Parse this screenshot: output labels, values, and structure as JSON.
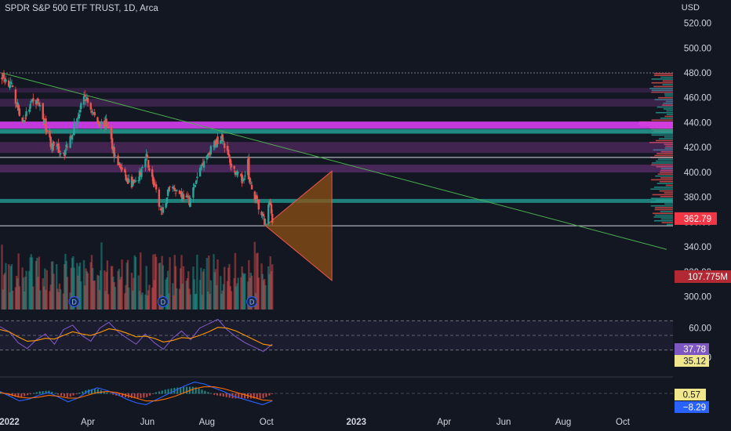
{
  "header": {
    "title": "SPDR S&P 500 ETF TRUST, 1D, Arca",
    "currency": "USD"
  },
  "colors": {
    "background": "#131722",
    "up": "#26a69a",
    "down": "#ef5350",
    "axis_text": "#d1d4dc",
    "price_label_bg": "#f23645",
    "rsi_line": "#7e57c2",
    "rsi_ma": "#ff9800",
    "macd_line": "#2962ff",
    "signal_line": "#ff6d00",
    "triangle_fill": "#8d5213",
    "triangle_edge": "#ef5350",
    "trend_line": "#4caf50"
  },
  "chart_data": [
    {
      "type": "candlestick",
      "title": "SPDR S&P 500 ETF TRUST, 1D, Arca",
      "ylabel": "USD",
      "ylim": [
        280,
        530
      ],
      "y_ticks": [
        "520.00",
        "500.00",
        "480.00",
        "460.00",
        "440.00",
        "420.00",
        "400.00",
        "380.00",
        "360.00",
        "340.00",
        "320.00",
        "300.00"
      ],
      "x_ticks": [
        "2022",
        "Apr",
        "Jun",
        "Aug",
        "Oct",
        "2023",
        "Apr",
        "Jun",
        "Aug",
        "Oct"
      ],
      "x_range": [
        "2022-01-01",
        "2023-11-15"
      ],
      "last_price_label": "362.79",
      "volume_label": "107.775M",
      "dividend_markers": [
        {
          "date": "2022-03-18",
          "label": "D"
        },
        {
          "date": "2022-06-17",
          "label": "D"
        },
        {
          "date": "2022-09-16",
          "label": "D"
        }
      ],
      "approx_close_series": [
        {
          "date": "2022-01-03",
          "close": 477
        },
        {
          "date": "2022-01-12",
          "close": 471
        },
        {
          "date": "2022-01-24",
          "close": 440
        },
        {
          "date": "2022-02-02",
          "close": 455
        },
        {
          "date": "2022-02-09",
          "close": 457
        },
        {
          "date": "2022-02-23",
          "close": 421
        },
        {
          "date": "2022-03-08",
          "close": 416
        },
        {
          "date": "2022-03-29",
          "close": 461
        },
        {
          "date": "2022-04-11",
          "close": 440
        },
        {
          "date": "2022-04-21",
          "close": 438
        },
        {
          "date": "2022-04-29",
          "close": 412
        },
        {
          "date": "2022-05-12",
          "close": 392
        },
        {
          "date": "2022-05-20",
          "close": 390
        },
        {
          "date": "2022-05-31",
          "close": 412
        },
        {
          "date": "2022-06-16",
          "close": 366
        },
        {
          "date": "2022-06-24",
          "close": 390
        },
        {
          "date": "2022-07-14",
          "close": 377
        },
        {
          "date": "2022-07-29",
          "close": 411
        },
        {
          "date": "2022-08-16",
          "close": 430
        },
        {
          "date": "2022-08-26",
          "close": 405
        },
        {
          "date": "2022-09-06",
          "close": 392
        },
        {
          "date": "2022-09-12",
          "close": 410
        },
        {
          "date": "2022-09-13",
          "close": 393
        },
        {
          "date": "2022-09-30",
          "close": 357
        },
        {
          "date": "2022-10-04",
          "close": 377
        },
        {
          "date": "2022-10-07",
          "close": 362.79
        }
      ],
      "annotations": [
        {
          "type": "trend_line",
          "from": {
            "date": "2022-01-03",
            "price": 480
          },
          "to": {
            "date": "2023-11-15",
            "price": 338
          }
        },
        {
          "type": "triangle",
          "points": [
            {
              "date": "2022-09-30",
              "price": 357
            },
            {
              "date": "2022-12-07",
              "price": 401
            },
            {
              "date": "2022-12-07",
              "price": 313
            }
          ]
        },
        {
          "type": "horizontal_line",
          "price": 357
        },
        {
          "type": "horizontal_line",
          "price": 412
        },
        {
          "type": "horizontal_line",
          "price": 480
        }
      ]
    },
    {
      "type": "line",
      "title": "",
      "y_ticks": [
        "60.00",
        "20.00"
      ],
      "levels": [
        70,
        50,
        30
      ],
      "series": [
        {
          "values": [
            62,
            55,
            40,
            32,
            44,
            52,
            38,
            58,
            64,
            50,
            42,
            60,
            68,
            55,
            46,
            38,
            52,
            40,
            31,
            46,
            56,
            44,
            60,
            66,
            72,
            58,
            48,
            40,
            34,
            28,
            38
          ]
        },
        {
          "values": [
            58,
            55,
            48,
            42,
            43,
            46,
            45,
            50,
            55,
            52,
            50,
            54,
            59,
            57,
            53,
            48,
            49,
            46,
            41,
            43,
            47,
            46,
            50,
            55,
            61,
            60,
            56,
            50,
            44,
            38,
            36
          ]
        }
      ],
      "value_labels": [
        "37.78",
        "35.12"
      ]
    },
    {
      "type": "line",
      "title": "",
      "series": [
        {
          "values": [
            2,
            -3,
            -8,
            -6,
            -2,
            1,
            -4,
            -9,
            -5,
            2,
            6,
            3,
            -1,
            -6,
            -10,
            -12,
            -7,
            -2,
            3,
            8,
            12,
            10,
            6,
            2,
            -3,
            -6,
            -9,
            -12,
            -8
          ]
        },
        {
          "values": [
            1,
            -1,
            -4,
            -5,
            -4,
            -2,
            -3,
            -5,
            -5,
            -2,
            1,
            2,
            1,
            -2,
            -5,
            -8,
            -8,
            -6,
            -3,
            1,
            5,
            7,
            7,
            5,
            2,
            -1,
            -4,
            -7,
            -7.7
          ]
        }
      ],
      "value_labels": [
        "0.57",
        "−8.29"
      ]
    }
  ]
}
